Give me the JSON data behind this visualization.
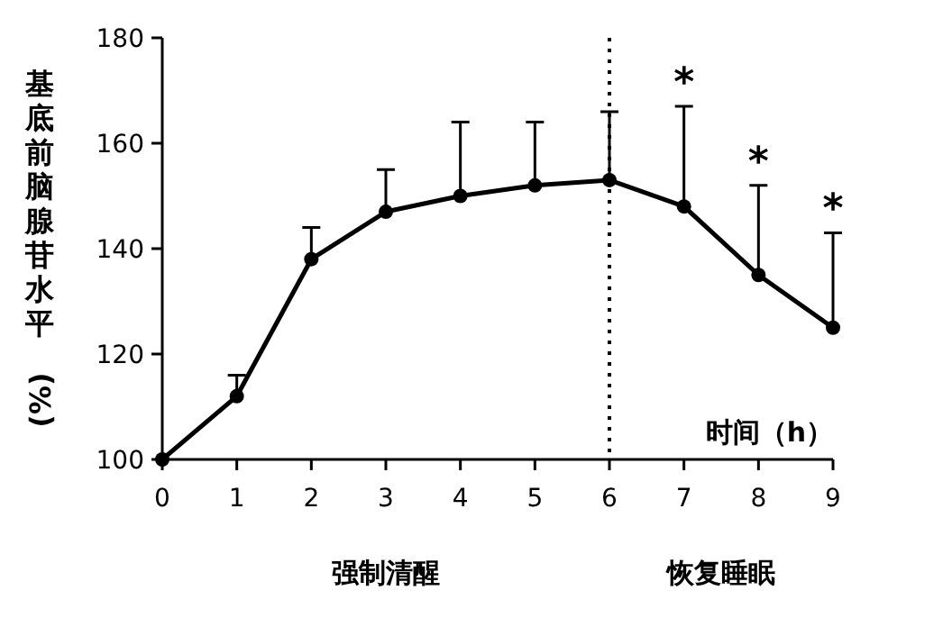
{
  "chart_data": {
    "type": "line",
    "xlabel": "时间（h）",
    "ylabel": "基底前脑腺苷水平 (%)",
    "x": [
      0,
      1,
      2,
      3,
      4,
      5,
      6,
      7,
      8,
      9
    ],
    "series": [
      {
        "color": "#000000",
        "values": [
          100,
          112,
          138,
          147,
          150,
          152,
          153,
          148,
          135,
          125
        ],
        "errors": [
          null,
          [
            112,
            116
          ],
          [
            138,
            144
          ],
          [
            147,
            155
          ],
          [
            150,
            164
          ],
          [
            152,
            164
          ],
          [
            153,
            166
          ],
          [
            148,
            167
          ],
          [
            135,
            152
          ],
          [
            125,
            143
          ]
        ]
      }
    ],
    "xlim": [
      0,
      9
    ],
    "xticks": [
      0,
      1,
      2,
      3,
      4,
      5,
      6,
      7,
      8,
      9
    ],
    "ylim": [
      100,
      180
    ],
    "yticks": [
      100,
      120,
      140,
      160,
      180
    ],
    "marker": "circle",
    "line_style": "solid",
    "ref_lines": [
      {
        "axis": "x",
        "value": 6,
        "line_style": "dotted",
        "color": "#000000"
      }
    ],
    "annotations": [
      "强制清醒",
      "恢复睡眠",
      {
        "text": "*",
        "x": 7,
        "y": 167
      },
      {
        "text": "*",
        "x": 8,
        "y": 152
      },
      {
        "text": "*",
        "x": 9,
        "y": 143
      }
    ]
  }
}
